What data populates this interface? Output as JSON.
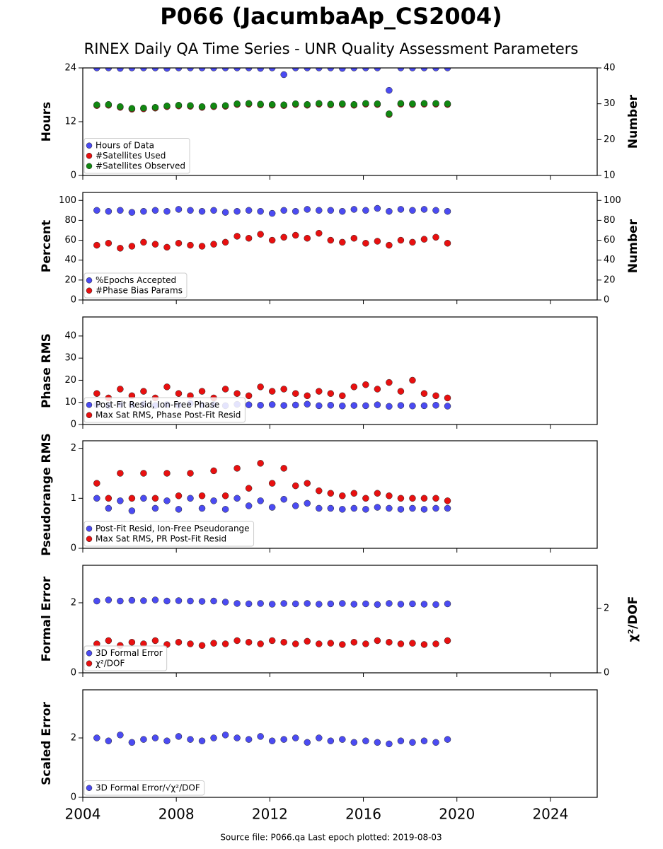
{
  "title": "P066 (JacumbaAp_CS2004)",
  "subtitle": "RINEX Daily QA Time Series - UNR Quality Assessment Parameters",
  "footer": "Source file: P066.qa Last epoch plotted: 2019-08-03",
  "chart_data": [
    {
      "type": "scatter",
      "ylabel": "Hours",
      "y2label": "Number",
      "legend": "lower left",
      "xlim": [
        2004,
        2026
      ],
      "xticks": [
        2004,
        2008,
        2012,
        2016,
        2020,
        2024
      ],
      "ylim": [
        0,
        24
      ],
      "yticks": [
        0,
        12,
        24
      ],
      "y2lim": [
        10,
        40
      ],
      "y2ticks": [
        10,
        20,
        30,
        40
      ],
      "x": [
        2004.6,
        2005.1,
        2005.6,
        2006.1,
        2006.6,
        2007.1,
        2007.6,
        2008.1,
        2008.6,
        2009.1,
        2009.6,
        2010.1,
        2010.6,
        2011.1,
        2011.6,
        2012.1,
        2012.6,
        2013.1,
        2013.6,
        2014.1,
        2014.6,
        2015.1,
        2015.6,
        2016.1,
        2016.6,
        2017.1,
        2017.6,
        2018.1,
        2018.6,
        2019.1,
        2019.6
      ],
      "series": [
        {
          "name": "Hours of Data",
          "color": "#4b4bf2",
          "values": [
            24,
            24,
            23.9,
            24,
            24,
            24,
            23.9,
            24,
            24,
            24,
            24,
            24,
            24,
            24,
            23.9,
            24,
            22.5,
            24,
            24,
            24,
            24,
            23.9,
            24,
            24,
            24,
            19,
            24,
            24,
            24,
            24,
            24
          ]
        },
        {
          "name": "#Satellites Used",
          "color": "#e81010",
          "axis": "y2",
          "values": [
            29.5,
            29.6,
            29.0,
            28.5,
            28.6,
            28.8,
            29.2,
            29.4,
            29.3,
            29.0,
            29.2,
            29.3,
            29.8,
            29.9,
            29.7,
            29.6,
            29.5,
            29.8,
            29.6,
            29.9,
            29.7,
            29.8,
            29.6,
            29.9,
            29.8,
            27.0,
            29.9,
            29.8,
            29.9,
            29.9,
            29.8
          ]
        },
        {
          "name": "#Satellites Observed",
          "color": "#118811",
          "axis": "y2",
          "values": [
            29.7,
            29.8,
            29.2,
            28.7,
            28.8,
            29.0,
            29.4,
            29.6,
            29.5,
            29.2,
            29.4,
            29.5,
            30.0,
            30.1,
            29.9,
            29.8,
            29.7,
            30.0,
            29.8,
            30.1,
            29.9,
            30.0,
            29.8,
            30.1,
            30.0,
            27.2,
            30.1,
            30.0,
            30.1,
            30.1,
            30.0
          ]
        }
      ]
    },
    {
      "type": "scatter",
      "ylabel": "Percent",
      "y2label": "Number",
      "legend": "lower left",
      "xlim": [
        2004,
        2026
      ],
      "xticks": [
        2004,
        2008,
        2012,
        2016,
        2020,
        2024
      ],
      "ylim": [
        0,
        108
      ],
      "yticks": [
        0,
        20,
        40,
        60,
        80,
        100
      ],
      "y2lim": [
        0,
        108
      ],
      "y2ticks": [
        0,
        20,
        40,
        60,
        80,
        100
      ],
      "x": [
        2004.6,
        2005.1,
        2005.6,
        2006.1,
        2006.6,
        2007.1,
        2007.6,
        2008.1,
        2008.6,
        2009.1,
        2009.6,
        2010.1,
        2010.6,
        2011.1,
        2011.6,
        2012.1,
        2012.6,
        2013.1,
        2013.6,
        2014.1,
        2014.6,
        2015.1,
        2015.6,
        2016.1,
        2016.6,
        2017.1,
        2017.6,
        2018.1,
        2018.6,
        2019.1,
        2019.6
      ],
      "series": [
        {
          "name": "%Epochs Accepted",
          "color": "#4b4bf2",
          "values": [
            90,
            89,
            90,
            88,
            89,
            90,
            89,
            91,
            90,
            89,
            90,
            88,
            89,
            90,
            89,
            87,
            90,
            89,
            91,
            90,
            90,
            89,
            91,
            90,
            92,
            89,
            91,
            90,
            91,
            90,
            89
          ]
        },
        {
          "name": "#Phase Bias Params",
          "color": "#e81010",
          "axis": "y2",
          "values": [
            55,
            57,
            52,
            54,
            58,
            56,
            53,
            57,
            55,
            54,
            56,
            58,
            64,
            62,
            66,
            60,
            63,
            65,
            62,
            67,
            60,
            58,
            62,
            57,
            59,
            55,
            60,
            58,
            61,
            63,
            57
          ]
        }
      ]
    },
    {
      "type": "scatter",
      "ylabel": "Phase RMS",
      "legend": "lower left",
      "xlim": [
        2004,
        2026
      ],
      "xticks": [
        2004,
        2008,
        2012,
        2016,
        2020,
        2024
      ],
      "ylim": [
        0,
        48.6
      ],
      "yticks": [
        0,
        10,
        20,
        30,
        40
      ],
      "x": [
        2004.6,
        2005.1,
        2005.6,
        2006.1,
        2006.6,
        2007.1,
        2007.6,
        2008.1,
        2008.6,
        2009.1,
        2009.6,
        2010.1,
        2010.6,
        2011.1,
        2011.6,
        2012.1,
        2012.6,
        2013.1,
        2013.6,
        2014.1,
        2014.6,
        2015.1,
        2015.6,
        2016.1,
        2016.6,
        2017.1,
        2017.6,
        2018.1,
        2018.6,
        2019.1,
        2019.6
      ],
      "series": [
        {
          "name": "Post-Fit Resid, Ion-Free Phase",
          "color": "#4b4bf2",
          "values": [
            9,
            8.5,
            9,
            8.8,
            9.2,
            8.6,
            9,
            8.7,
            9.5,
            8.8,
            9,
            8.5,
            9.1,
            8.9,
            8.7,
            9,
            8.6,
            8.8,
            9.2,
            8.5,
            8.7,
            8.4,
            8.6,
            8.5,
            8.9,
            8.2,
            8.6,
            8.4,
            8.5,
            8.7,
            8.3
          ]
        },
        {
          "name": "Max Sat RMS, Phase Post-Fit Resid",
          "color": "#e81010",
          "values": [
            14,
            12,
            16,
            13,
            15,
            12,
            17,
            14,
            13,
            15,
            12,
            16,
            14,
            13,
            17,
            15,
            16,
            14,
            13,
            15,
            14,
            13,
            17,
            18,
            16,
            19,
            15,
            20,
            14,
            13,
            12
          ]
        }
      ]
    },
    {
      "type": "scatter",
      "ylabel": "Pseudorange RMS",
      "legend": "lower left",
      "xlim": [
        2004,
        2026
      ],
      "xticks": [
        2004,
        2008,
        2012,
        2016,
        2020,
        2024
      ],
      "ylim": [
        0,
        2.15
      ],
      "yticks": [
        0,
        1,
        2
      ],
      "x": [
        2004.6,
        2005.1,
        2005.6,
        2006.1,
        2006.6,
        2007.1,
        2007.6,
        2008.1,
        2008.6,
        2009.1,
        2009.6,
        2010.1,
        2010.6,
        2011.1,
        2011.6,
        2012.1,
        2012.6,
        2013.1,
        2013.6,
        2014.1,
        2014.6,
        2015.1,
        2015.6,
        2016.1,
        2016.6,
        2017.1,
        2017.6,
        2018.1,
        2018.6,
        2019.1,
        2019.6
      ],
      "series": [
        {
          "name": "Post-Fit Resid, Ion-Free Pseudorange",
          "color": "#4b4bf2",
          "values": [
            1.0,
            0.8,
            0.95,
            0.75,
            1.0,
            0.8,
            0.95,
            0.78,
            1.0,
            0.8,
            0.95,
            0.78,
            1.0,
            0.85,
            0.95,
            0.82,
            0.98,
            0.85,
            0.9,
            0.8,
            0.8,
            0.78,
            0.8,
            0.78,
            0.82,
            0.8,
            0.78,
            0.8,
            0.78,
            0.8,
            0.8
          ]
        },
        {
          "name": "Max Sat RMS, PR Post-Fit Resid",
          "color": "#e81010",
          "values": [
            1.3,
            1.0,
            1.5,
            1.0,
            1.5,
            1.0,
            1.5,
            1.05,
            1.5,
            1.05,
            1.55,
            1.05,
            1.6,
            1.2,
            1.7,
            1.3,
            1.6,
            1.25,
            1.3,
            1.15,
            1.1,
            1.05,
            1.1,
            1.0,
            1.1,
            1.05,
            1.0,
            1.0,
            1.0,
            1.0,
            0.95
          ]
        }
      ]
    },
    {
      "type": "scatter",
      "ylabel": "Formal Error",
      "y2label": "χ²/DOF",
      "legend": "lower left",
      "xlim": [
        2004,
        2026
      ],
      "xticks": [
        2004,
        2008,
        2012,
        2016,
        2020,
        2024
      ],
      "ylim": [
        0,
        3.07
      ],
      "yticks": [
        0,
        2
      ],
      "y2lim": [
        0,
        3.34
      ],
      "y2ticks": [
        0,
        2
      ],
      "x": [
        2004.6,
        2005.1,
        2005.6,
        2006.1,
        2006.6,
        2007.1,
        2007.6,
        2008.1,
        2008.6,
        2009.1,
        2009.6,
        2010.1,
        2010.6,
        2011.1,
        2011.6,
        2012.1,
        2012.6,
        2013.1,
        2013.6,
        2014.1,
        2014.6,
        2015.1,
        2015.6,
        2016.1,
        2016.6,
        2017.1,
        2017.6,
        2018.1,
        2018.6,
        2019.1,
        2019.6
      ],
      "series": [
        {
          "name": "3D Formal Error",
          "color": "#4b4bf2",
          "values": [
            2.05,
            2.08,
            2.05,
            2.07,
            2.06,
            2.08,
            2.05,
            2.06,
            2.05,
            2.04,
            2.05,
            2.02,
            1.98,
            1.97,
            1.98,
            1.96,
            1.98,
            1.97,
            1.98,
            1.96,
            1.97,
            1.98,
            1.96,
            1.97,
            1.95,
            1.98,
            1.96,
            1.97,
            1.96,
            1.95,
            1.97
          ]
        },
        {
          "name": "χ²/DOF",
          "color": "#e81010",
          "axis": "y2",
          "values": [
            0.9,
            1.0,
            0.85,
            0.95,
            0.9,
            1.0,
            0.88,
            0.95,
            0.9,
            0.85,
            0.92,
            0.9,
            1.0,
            0.95,
            0.9,
            1.0,
            0.95,
            0.9,
            0.98,
            0.9,
            0.92,
            0.88,
            0.95,
            0.9,
            1.0,
            0.95,
            0.9,
            0.92,
            0.88,
            0.9,
            1.0
          ]
        }
      ]
    },
    {
      "type": "scatter",
      "ylabel": "Scaled Error",
      "legend": "lower left",
      "xlim": [
        2004,
        2026
      ],
      "xticks": [
        2004,
        2008,
        2012,
        2016,
        2020,
        2024
      ],
      "ylim": [
        0,
        3.62
      ],
      "yticks": [
        0,
        2
      ],
      "x": [
        2004.6,
        2005.1,
        2005.6,
        2006.1,
        2006.6,
        2007.1,
        2007.6,
        2008.1,
        2008.6,
        2009.1,
        2009.6,
        2010.1,
        2010.6,
        2011.1,
        2011.6,
        2012.1,
        2012.6,
        2013.1,
        2013.6,
        2014.1,
        2014.6,
        2015.1,
        2015.6,
        2016.1,
        2016.6,
        2017.1,
        2017.6,
        2018.1,
        2018.6,
        2019.1,
        2019.6
      ],
      "series": [
        {
          "name": "3D Formal Error/√χ²/DOF",
          "color": "#4b4bf2",
          "values": [
            2.0,
            1.9,
            2.1,
            1.85,
            1.95,
            2.0,
            1.9,
            2.05,
            1.95,
            1.9,
            2.0,
            2.1,
            2.0,
            1.95,
            2.05,
            1.9,
            1.95,
            2.0,
            1.85,
            2.0,
            1.9,
            1.95,
            1.85,
            1.9,
            1.85,
            1.8,
            1.9,
            1.85,
            1.9,
            1.85,
            1.95
          ]
        }
      ]
    }
  ]
}
